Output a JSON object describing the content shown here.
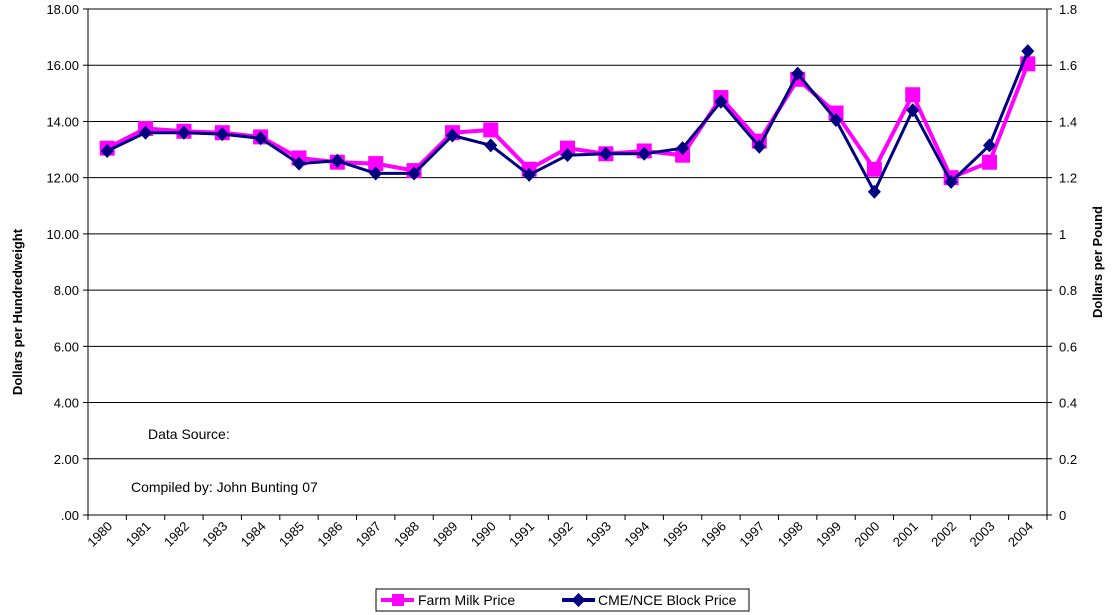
{
  "chart_data": {
    "type": "line",
    "categories": [
      "1980",
      "1981",
      "1982",
      "1983",
      "1984",
      "1985",
      "1986",
      "1987",
      "1988",
      "1989",
      "1990",
      "1991",
      "1992",
      "1993",
      "1994",
      "1995",
      "1996",
      "1997",
      "1998",
      "1999",
      "2000",
      "2001",
      "2002",
      "2003",
      "2004"
    ],
    "series": [
      {
        "name": "Farm Milk Price",
        "axis": "left",
        "color": "#ff00ff",
        "marker": "square",
        "values": [
          13.05,
          13.75,
          13.65,
          13.6,
          13.45,
          12.7,
          12.55,
          12.5,
          12.25,
          13.6,
          13.7,
          12.3,
          13.05,
          12.85,
          12.95,
          12.8,
          14.85,
          13.3,
          15.5,
          14.3,
          12.3,
          14.95,
          12.0,
          12.55,
          16.05
        ]
      },
      {
        "name": "CME/NCE Block Price",
        "axis": "right",
        "color": "#000080",
        "marker": "diamond",
        "values": [
          1.295,
          1.36,
          1.36,
          1.355,
          1.34,
          1.25,
          1.26,
          1.215,
          1.215,
          1.35,
          1.315,
          1.21,
          1.28,
          1.285,
          1.285,
          1.305,
          1.47,
          1.31,
          1.57,
          1.405,
          1.15,
          1.44,
          1.185,
          1.315,
          1.65
        ]
      }
    ],
    "ylabel": "Dollars per Hundredweight",
    "y2label": "Dollars per Pound",
    "ylim": [
      0,
      18
    ],
    "y2lim": [
      0,
      1.8
    ],
    "yticks": [
      ".00",
      "2.00",
      "4.00",
      "6.00",
      "8.00",
      "10.00",
      "12.00",
      "14.00",
      "16.00",
      "18.00"
    ],
    "y2ticks": [
      "0",
      "0.2",
      "0.4",
      "0.6",
      "0.8",
      "1",
      "1.2",
      "1.4",
      "1.6",
      "1.8"
    ],
    "grid": "horizontal",
    "legend": "bottom",
    "annotations": [
      "Data Source:",
      "Compiled by: John Bunting 07"
    ]
  }
}
